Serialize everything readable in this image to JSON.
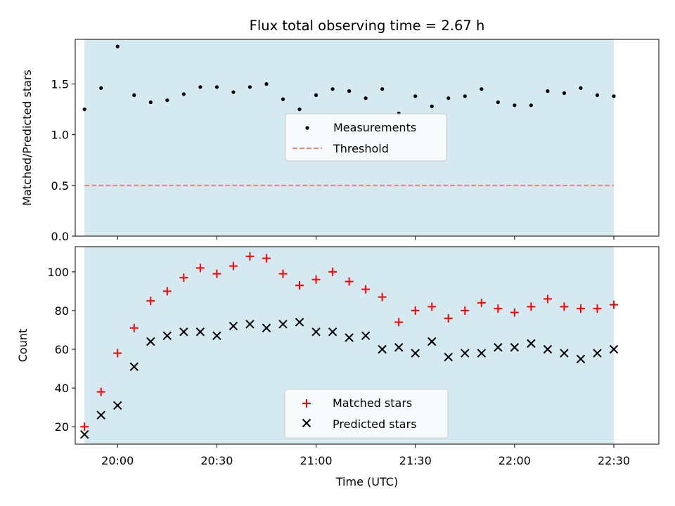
{
  "title": "Flux total observing time = 2.67 h",
  "chart_data": [
    {
      "type": "scatter",
      "ylabel": "Matched/Predicted stars",
      "ylim": [
        0,
        1.94
      ],
      "yticks": [
        "0.0",
        "0.5",
        "1.0",
        "1.5"
      ],
      "ytick_values": [
        0,
        0.5,
        1.0,
        1.5
      ],
      "threshold": 0.5,
      "shaded": true,
      "legend_position": "center",
      "series": [
        {
          "name": "Measurements",
          "marker": "dot",
          "color": "#000000",
          "x": [
            "19:50",
            "19:55",
            "20:00",
            "20:05",
            "20:10",
            "20:15",
            "20:20",
            "20:25",
            "20:30",
            "20:35",
            "20:40",
            "20:45",
            "20:50",
            "20:55",
            "21:00",
            "21:05",
            "21:10",
            "21:15",
            "21:20",
            "21:25",
            "21:30",
            "21:35",
            "21:40",
            "21:45",
            "21:50",
            "21:55",
            "22:00",
            "22:05",
            "22:10",
            "22:15",
            "22:20",
            "22:25",
            "22:30"
          ],
          "y": [
            1.25,
            1.46,
            1.87,
            1.39,
            1.32,
            1.34,
            1.4,
            1.47,
            1.47,
            1.42,
            1.47,
            1.5,
            1.35,
            1.25,
            1.39,
            1.45,
            1.43,
            1.36,
            1.45,
            1.21,
            1.38,
            1.28,
            1.36,
            1.38,
            1.45,
            1.32,
            1.29,
            1.29,
            1.43,
            1.41,
            1.46,
            1.39,
            1.38
          ]
        },
        {
          "name": "Threshold",
          "marker": "dashed-line",
          "color": "#f08080"
        }
      ]
    },
    {
      "type": "scatter",
      "xlabel": "Time (UTC)",
      "ylabel": "Count",
      "ylim": [
        11,
        113
      ],
      "yticks": [
        "20",
        "40",
        "60",
        "80",
        "100"
      ],
      "ytick_values": [
        20,
        40,
        60,
        80,
        100
      ],
      "xticks": [
        "20:00",
        "20:30",
        "21:00",
        "21:30",
        "22:00",
        "22:30"
      ],
      "shaded": true,
      "legend_position": "bottom-center",
      "series": [
        {
          "name": "Matched stars",
          "marker": "plus",
          "color": "#ff0000",
          "x": [
            "19:50",
            "19:55",
            "20:00",
            "20:05",
            "20:10",
            "20:15",
            "20:20",
            "20:25",
            "20:30",
            "20:35",
            "20:40",
            "20:45",
            "20:50",
            "20:55",
            "21:00",
            "21:05",
            "21:10",
            "21:15",
            "21:20",
            "21:25",
            "21:30",
            "21:35",
            "21:40",
            "21:45",
            "21:50",
            "21:55",
            "22:00",
            "22:05",
            "22:10",
            "22:15",
            "22:20",
            "22:25",
            "22:30"
          ],
          "y": [
            20,
            38,
            58,
            71,
            85,
            90,
            97,
            102,
            99,
            103,
            108,
            107,
            99,
            93,
            96,
            100,
            95,
            91,
            87,
            74,
            80,
            82,
            76,
            80,
            84,
            81,
            79,
            82,
            86,
            82,
            81,
            81,
            83
          ]
        },
        {
          "name": "Predicted stars",
          "marker": "x",
          "color": "#000000",
          "x": [
            "19:50",
            "19:55",
            "20:00",
            "20:05",
            "20:10",
            "20:15",
            "20:20",
            "20:25",
            "20:30",
            "20:35",
            "20:40",
            "20:45",
            "20:50",
            "20:55",
            "21:00",
            "21:05",
            "21:10",
            "21:15",
            "21:20",
            "21:25",
            "21:30",
            "21:35",
            "21:40",
            "21:45",
            "21:50",
            "21:55",
            "22:00",
            "22:05",
            "22:10",
            "22:15",
            "22:20",
            "22:25",
            "22:30"
          ],
          "y": [
            16,
            26,
            31,
            51,
            64,
            67,
            69,
            69,
            67,
            72,
            73,
            71,
            73,
            74,
            69,
            69,
            66,
            67,
            60,
            61,
            58,
            64,
            56,
            58,
            58,
            61,
            61,
            63,
            60,
            58,
            55,
            58,
            60
          ]
        }
      ]
    }
  ],
  "colors": {
    "shade": "#d4eaf0",
    "threshold": "#f08080",
    "matched": "#ff0000",
    "predicted": "#000000"
  }
}
